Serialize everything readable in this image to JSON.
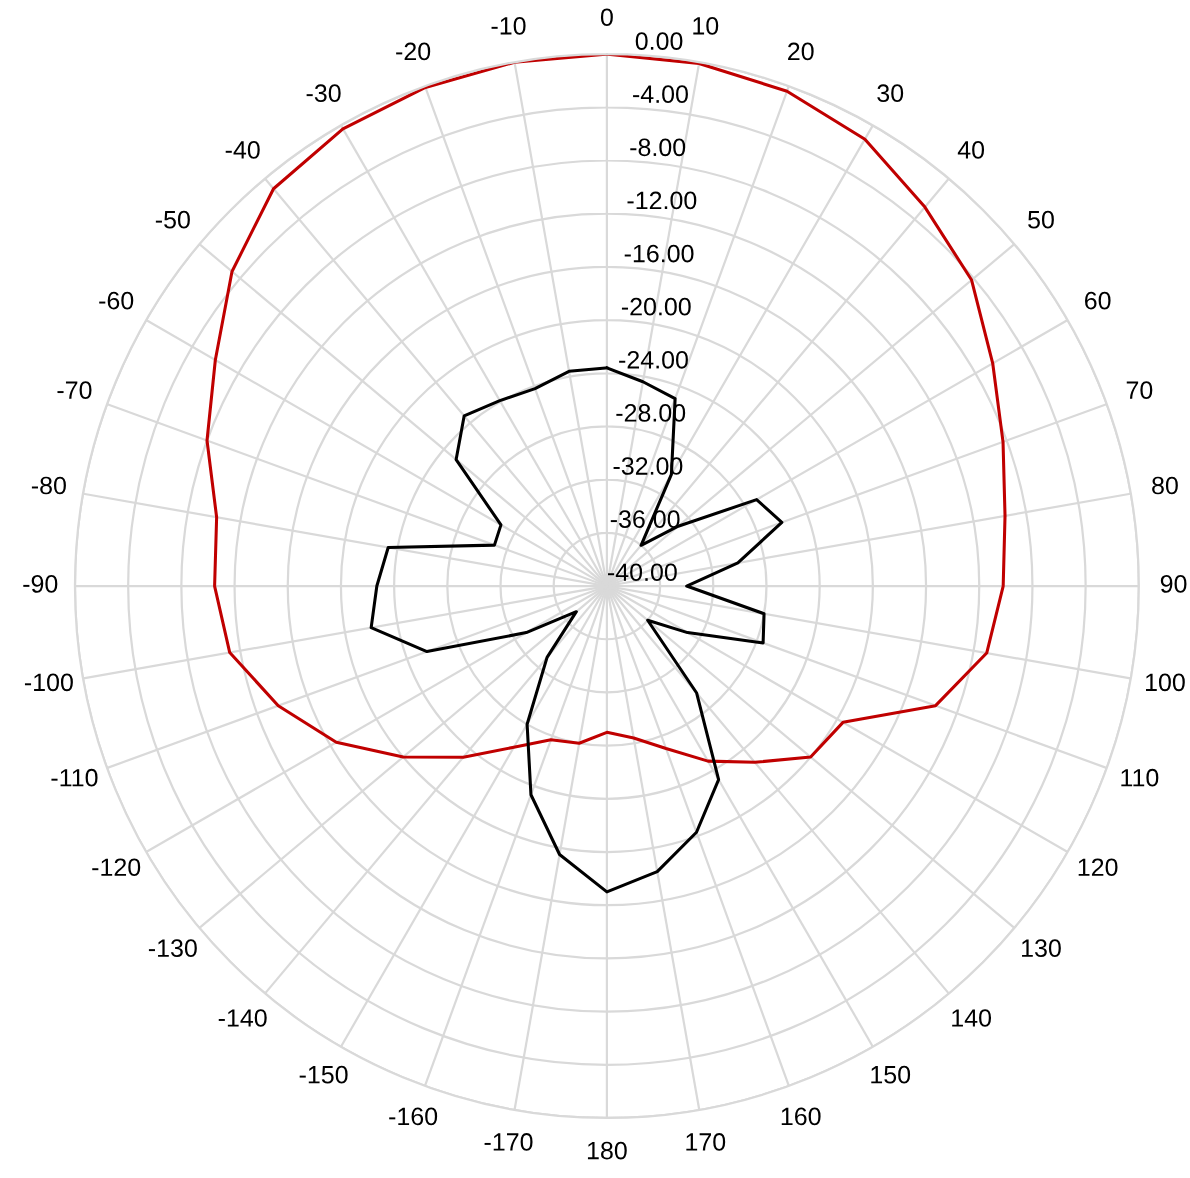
{
  "chart_data": {
    "type": "radar",
    "categories": [
      "0",
      "10",
      "20",
      "30",
      "40",
      "50",
      "60",
      "70",
      "80",
      "90",
      "100",
      "110",
      "120",
      "130",
      "140",
      "150",
      "160",
      "170",
      "180",
      "-170",
      "-160",
      "-150",
      "-140",
      "-130",
      "-120",
      "-110",
      "-100",
      "-90",
      "-80",
      "-70",
      "-60",
      "-50",
      "-40",
      "-30",
      "-20",
      "-10"
    ],
    "series": [
      {
        "color": "#c00000",
        "values": [
          0,
          -0.1,
          -0.4,
          -1.2,
          -2.8,
          -4.2,
          -6.5,
          -8.3,
          -9.6,
          -10.2,
          -11,
          -13.7,
          -19.5,
          -20,
          -22.7,
          -24.8,
          -27,
          -28.4,
          -29,
          -28,
          -27.7,
          -26,
          -23.2,
          -20,
          -16.5,
          -13.7,
          -11.2,
          -10.5,
          -10.2,
          -8,
          -6,
          -3.2,
          -1,
          -0.3,
          -0.1,
          0
        ]
      },
      {
        "color": "#000000",
        "values": [
          -23.6,
          -24.4,
          -25,
          -30.3,
          -36,
          -33,
          -27,
          -26,
          -30,
          -34,
          -28,
          -27.5,
          -33,
          -36,
          -29.5,
          -23.2,
          -20.3,
          -18.2,
          -17,
          -19.5,
          -23.3,
          -28,
          -33,
          -37,
          -33,
          -25.6,
          -22,
          -22.7,
          -23.3,
          -31,
          -30.8,
          -25.2,
          -23.3,
          -23.9,
          -24.2,
          -23.6
        ]
      }
    ],
    "ylim": [
      -40,
      0
    ],
    "yticks": [
      {
        "value": 0,
        "label": "0.00"
      },
      {
        "value": -4,
        "label": "-4.00"
      },
      {
        "value": -8,
        "label": "-8.00"
      },
      {
        "value": -12,
        "label": "-12.00"
      },
      {
        "value": -16,
        "label": "-16.00"
      },
      {
        "value": -20,
        "label": "-20.00"
      },
      {
        "value": -24,
        "label": "-24.00"
      },
      {
        "value": -28,
        "label": "-28.00"
      },
      {
        "value": -32,
        "label": "-32.00"
      },
      {
        "value": -36,
        "label": "-36.00"
      },
      {
        "value": -40,
        "label": "-40.00"
      }
    ],
    "grid": true
  }
}
